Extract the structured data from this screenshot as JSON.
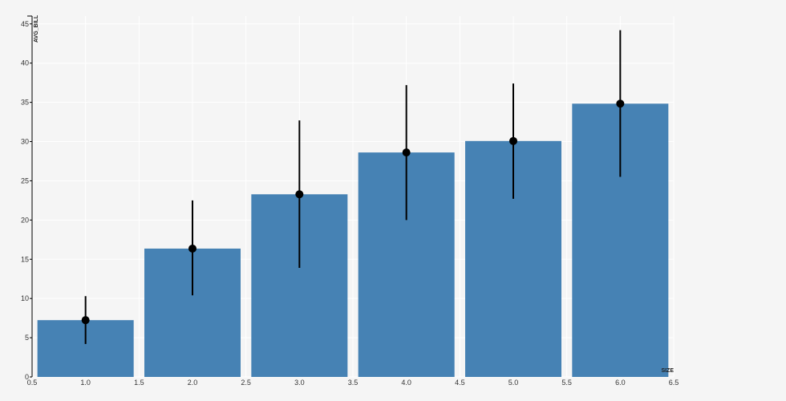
{
  "chart_data": {
    "type": "bar",
    "title": "",
    "xlabel": "SIZE",
    "ylabel": "AVG_BILL",
    "xlim": [
      0.5,
      6.5
    ],
    "ylim": [
      0,
      46
    ],
    "x_ticks": [
      0.5,
      1.0,
      1.5,
      2.0,
      2.5,
      3.0,
      3.5,
      4.0,
      4.5,
      5.0,
      5.5,
      6.0,
      6.5
    ],
    "x_tick_labels": [
      "0.5",
      "1.0",
      "1.5",
      "2.0",
      "2.5",
      "3.0",
      "3.5",
      "4.0",
      "4.5",
      "5.0",
      "5.5",
      "6.0",
      "6.5"
    ],
    "y_ticks": [
      0,
      5,
      10,
      15,
      20,
      25,
      30,
      35,
      40,
      45
    ],
    "y_tick_labels": [
      "0",
      "5",
      "10",
      "15",
      "20",
      "25",
      "30",
      "35",
      "40",
      "45"
    ],
    "grid": true,
    "bar_width": 0.9,
    "series": [
      {
        "x": [
          1,
          2,
          3,
          4,
          5,
          6
        ],
        "values": [
          7.24,
          16.36,
          23.28,
          28.61,
          30.07,
          34.83
        ],
        "error_low": [
          4.2,
          10.4,
          13.9,
          20.0,
          22.7,
          25.5
        ],
        "error_high": [
          10.3,
          22.5,
          32.7,
          37.2,
          37.4,
          44.2
        ]
      }
    ],
    "colors": {
      "bar": "#4682b4",
      "point": "#000000",
      "error_bar": "#000000",
      "grid": "#ffffff",
      "background": "#f5f5f5",
      "axis": "#000000"
    }
  }
}
